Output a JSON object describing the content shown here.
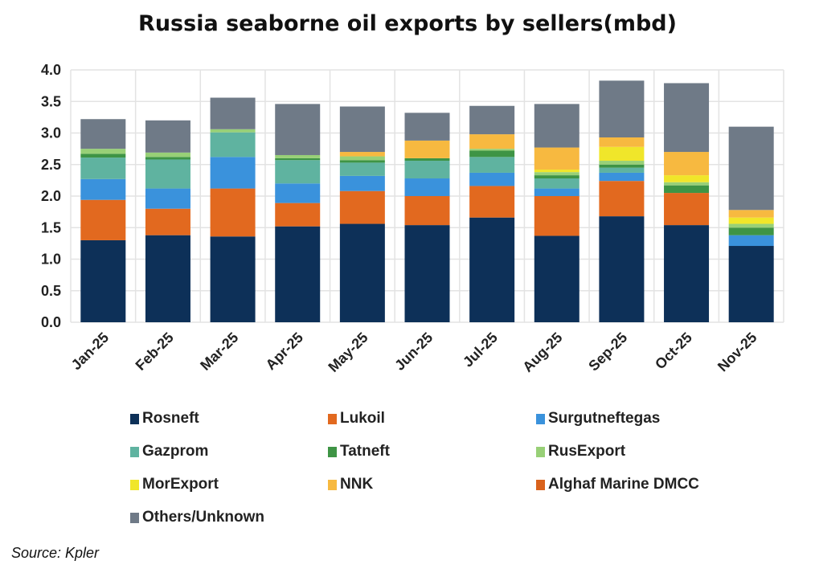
{
  "chart_data": {
    "type": "bar",
    "stacked": true,
    "title": "Russia seaborne oil exports by sellers(mbd)",
    "xlabel": "",
    "ylabel": "",
    "ylim": [
      0,
      4.0
    ],
    "yticks": [
      "0.0",
      "0.5",
      "1.0",
      "1.5",
      "2.0",
      "2.5",
      "3.0",
      "3.5",
      "4.0"
    ],
    "grid": true,
    "legend_position": "bottom",
    "categories": [
      "Jan-25",
      "Feb-25",
      "Mar-25",
      "Apr-25",
      "May-25",
      "Jun-25",
      "Jul-25",
      "Aug-25",
      "Sep-25",
      "Oct-25",
      "Nov-25"
    ],
    "series": [
      {
        "name": "Rosneft",
        "color": "#0d3058",
        "values": [
          1.3,
          1.38,
          1.36,
          1.52,
          1.56,
          1.54,
          1.66,
          1.37,
          1.68,
          1.54,
          1.21
        ]
      },
      {
        "name": "Lukoil",
        "color": "#e2691f",
        "values": [
          0.64,
          0.42,
          0.76,
          0.37,
          0.52,
          0.46,
          0.5,
          0.63,
          0.56,
          0.51,
          0
        ]
      },
      {
        "name": "Surgutneftegas",
        "color": "#3a92dc",
        "values": [
          0.33,
          0.32,
          0.5,
          0.31,
          0.24,
          0.28,
          0.21,
          0.12,
          0.13,
          0,
          0.17
        ]
      },
      {
        "name": "Gazprom",
        "color": "#5fb3a0",
        "values": [
          0.34,
          0.46,
          0.39,
          0.37,
          0.21,
          0.28,
          0.25,
          0.16,
          0.08,
          0,
          0
        ]
      },
      {
        "name": "Tatneft",
        "color": "#3e9445",
        "values": [
          0.06,
          0.04,
          0,
          0.03,
          0.04,
          0.04,
          0.1,
          0.05,
          0.05,
          0.12,
          0.12
        ]
      },
      {
        "name": "RusExport",
        "color": "#98d077",
        "values": [
          0.08,
          0.07,
          0.05,
          0.05,
          0.06,
          0,
          0.03,
          0.05,
          0.06,
          0.05,
          0.06
        ]
      },
      {
        "name": "MorExport",
        "color": "#f0e62a",
        "values": [
          0,
          0,
          0,
          0,
          0,
          0,
          0,
          0.04,
          0.22,
          0.11,
          0.1
        ]
      },
      {
        "name": "NNK",
        "color": "#f7b940",
        "values": [
          0,
          0,
          0,
          0,
          0.07,
          0.28,
          0.23,
          0.35,
          0.15,
          0.37,
          0.12
        ]
      },
      {
        "name": "Alghaf Marine DMCC",
        "color": "#d9621c",
        "values": [
          0,
          0,
          0,
          0,
          0,
          0,
          0,
          0,
          0,
          0,
          0
        ]
      },
      {
        "name": "Others/Unknown",
        "color": "#6f7a87",
        "values": [
          0.47,
          0.51,
          0.5,
          0.81,
          0.72,
          0.44,
          0.45,
          0.69,
          0.9,
          1.09,
          1.32
        ]
      }
    ]
  },
  "source": "Source: Kpler"
}
